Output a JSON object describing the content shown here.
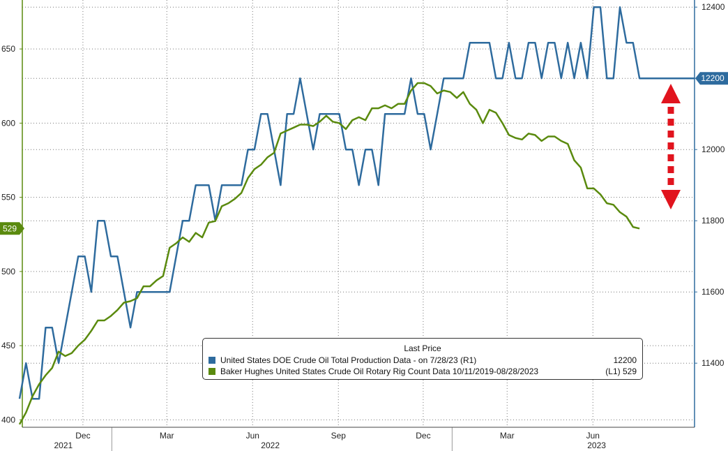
{
  "colors": {
    "production": "#2e6b9e",
    "rigcount": "#5a8a0e",
    "arrow": "#e1141e",
    "grid": "#777777"
  },
  "legend": {
    "title": "Last Price",
    "rows": [
      {
        "label": "United States DOE Crude Oil Total Production Data -   on 7/28/23  (R1)",
        "value": "12200"
      },
      {
        "label": "Baker Hughes United States Crude Oil Rotary Rig Count Data 10/11/2019-08/28/2023",
        "value": "(L1) 529"
      }
    ]
  },
  "chart_data": {
    "type": "line",
    "x_tick_labels": [
      "Dec",
      "Mar",
      "Jun",
      "Sep",
      "Dec",
      "Mar",
      "Jun"
    ],
    "year_labels": [
      "2021",
      "2022",
      "2023"
    ],
    "x_range": [
      "2021-09-27",
      "2023-09-18"
    ],
    "left_axis": {
      "ylim": [
        395,
        683
      ],
      "ticks": [
        400,
        450,
        500,
        550,
        600,
        650
      ],
      "last_value_label": "529"
    },
    "right_axis": {
      "ylim": [
        11220,
        12420
      ],
      "ticks": [
        11400,
        11600,
        11800,
        12000,
        12200,
        12400
      ],
      "last_value_label": "12200"
    },
    "series": [
      {
        "name": "United States DOE Crude Oil Total Production Data",
        "axis": "right",
        "points": [
          [
            "2021-09-24",
            11300
          ],
          [
            "2021-10-01",
            11400
          ],
          [
            "2021-10-08",
            11300
          ],
          [
            "2021-10-15",
            11300
          ],
          [
            "2021-10-22",
            11500
          ],
          [
            "2021-10-29",
            11500
          ],
          [
            "2021-11-05",
            11400
          ],
          [
            "2021-11-12",
            11500
          ],
          [
            "2021-11-19",
            11600
          ],
          [
            "2021-11-26",
            11700
          ],
          [
            "2021-12-03",
            11700
          ],
          [
            "2021-12-10",
            11600
          ],
          [
            "2021-12-17",
            11800
          ],
          [
            "2021-12-24",
            11800
          ],
          [
            "2021-12-31",
            11700
          ],
          [
            "2022-01-07",
            11700
          ],
          [
            "2022-01-14",
            11600
          ],
          [
            "2022-01-21",
            11500
          ],
          [
            "2022-01-28",
            11600
          ],
          [
            "2022-02-04",
            11600
          ],
          [
            "2022-02-11",
            11600
          ],
          [
            "2022-02-18",
            11600
          ],
          [
            "2022-02-25",
            11600
          ],
          [
            "2022-03-04",
            11600
          ],
          [
            "2022-03-11",
            11700
          ],
          [
            "2022-03-18",
            11800
          ],
          [
            "2022-03-25",
            11800
          ],
          [
            "2022-04-01",
            11900
          ],
          [
            "2022-04-08",
            11900
          ],
          [
            "2022-04-15",
            11900
          ],
          [
            "2022-04-22",
            11800
          ],
          [
            "2022-04-29",
            11900
          ],
          [
            "2022-05-06",
            11900
          ],
          [
            "2022-05-13",
            11900
          ],
          [
            "2022-05-20",
            11900
          ],
          [
            "2022-05-27",
            12000
          ],
          [
            "2022-06-03",
            12000
          ],
          [
            "2022-06-10",
            12100
          ],
          [
            "2022-06-17",
            12100
          ],
          [
            "2022-06-24",
            12000
          ],
          [
            "2022-07-01",
            11900
          ],
          [
            "2022-07-08",
            12100
          ],
          [
            "2022-07-15",
            12100
          ],
          [
            "2022-07-22",
            12200
          ],
          [
            "2022-07-29",
            12100
          ],
          [
            "2022-08-05",
            12000
          ],
          [
            "2022-08-12",
            12100
          ],
          [
            "2022-08-19",
            12100
          ],
          [
            "2022-08-26",
            12100
          ],
          [
            "2022-09-02",
            12100
          ],
          [
            "2022-09-09",
            12000
          ],
          [
            "2022-09-16",
            12000
          ],
          [
            "2022-09-23",
            11900
          ],
          [
            "2022-09-30",
            12000
          ],
          [
            "2022-10-07",
            12000
          ],
          [
            "2022-10-14",
            11900
          ],
          [
            "2022-10-21",
            12100
          ],
          [
            "2022-10-28",
            12100
          ],
          [
            "2022-11-04",
            12100
          ],
          [
            "2022-11-11",
            12100
          ],
          [
            "2022-11-18",
            12200
          ],
          [
            "2022-11-25",
            12100
          ],
          [
            "2022-12-02",
            12100
          ],
          [
            "2022-12-09",
            12000
          ],
          [
            "2022-12-16",
            12100
          ],
          [
            "2022-12-23",
            12200
          ],
          [
            "2022-12-30",
            12200
          ],
          [
            "2023-01-06",
            12200
          ],
          [
            "2023-01-13",
            12200
          ],
          [
            "2023-01-20",
            12300
          ],
          [
            "2023-01-27",
            12300
          ],
          [
            "2023-02-03",
            12300
          ],
          [
            "2023-02-10",
            12300
          ],
          [
            "2023-02-17",
            12200
          ],
          [
            "2023-02-24",
            12200
          ],
          [
            "2023-03-03",
            12300
          ],
          [
            "2023-03-10",
            12200
          ],
          [
            "2023-03-17",
            12200
          ],
          [
            "2023-03-24",
            12300
          ],
          [
            "2023-03-31",
            12300
          ],
          [
            "2023-04-07",
            12200
          ],
          [
            "2023-04-14",
            12300
          ],
          [
            "2023-04-21",
            12300
          ],
          [
            "2023-04-28",
            12200
          ],
          [
            "2023-05-05",
            12300
          ],
          [
            "2023-05-12",
            12200
          ],
          [
            "2023-05-19",
            12300
          ],
          [
            "2023-05-26",
            12200
          ],
          [
            "2023-06-02",
            12400
          ],
          [
            "2023-06-09",
            12400
          ],
          [
            "2023-06-16",
            12200
          ],
          [
            "2023-06-23",
            12200
          ],
          [
            "2023-06-30",
            12400
          ],
          [
            "2023-07-07",
            12300
          ],
          [
            "2023-07-14",
            12300
          ],
          [
            "2023-07-21",
            12200
          ],
          [
            "2023-07-28",
            12200
          ],
          [
            "2023-09-18",
            12200
          ]
        ]
      },
      {
        "name": "Baker Hughes United States Crude Oil Rotary Rig Count Data",
        "axis": "left",
        "points": [
          [
            "2021-09-24",
            397
          ],
          [
            "2021-10-01",
            405
          ],
          [
            "2021-10-08",
            416
          ],
          [
            "2021-10-15",
            424
          ],
          [
            "2021-10-22",
            430
          ],
          [
            "2021-10-29",
            435
          ],
          [
            "2021-11-05",
            446
          ],
          [
            "2021-11-12",
            443
          ],
          [
            "2021-11-19",
            445
          ],
          [
            "2021-11-26",
            450
          ],
          [
            "2021-12-03",
            454
          ],
          [
            "2021-12-10",
            460
          ],
          [
            "2021-12-17",
            467
          ],
          [
            "2021-12-24",
            467
          ],
          [
            "2021-12-31",
            470
          ],
          [
            "2022-01-07",
            474
          ],
          [
            "2022-01-14",
            479
          ],
          [
            "2022-01-21",
            480
          ],
          [
            "2022-01-28",
            482
          ],
          [
            "2022-02-04",
            490
          ],
          [
            "2022-02-11",
            490
          ],
          [
            "2022-02-18",
            494
          ],
          [
            "2022-02-25",
            497
          ],
          [
            "2022-03-04",
            516
          ],
          [
            "2022-03-11",
            519
          ],
          [
            "2022-03-18",
            523
          ],
          [
            "2022-03-25",
            520
          ],
          [
            "2022-04-01",
            526
          ],
          [
            "2022-04-08",
            523
          ],
          [
            "2022-04-15",
            533
          ],
          [
            "2022-04-22",
            534
          ],
          [
            "2022-04-29",
            544
          ],
          [
            "2022-05-06",
            546
          ],
          [
            "2022-05-13",
            549
          ],
          [
            "2022-05-20",
            553
          ],
          [
            "2022-05-27",
            563
          ],
          [
            "2022-06-03",
            569
          ],
          [
            "2022-06-10",
            572
          ],
          [
            "2022-06-17",
            577
          ],
          [
            "2022-06-24",
            580
          ],
          [
            "2022-07-01",
            593
          ],
          [
            "2022-07-08",
            595
          ],
          [
            "2022-07-15",
            597
          ],
          [
            "2022-07-22",
            599
          ],
          [
            "2022-07-29",
            599
          ],
          [
            "2022-08-05",
            598
          ],
          [
            "2022-08-12",
            601
          ],
          [
            "2022-08-19",
            605
          ],
          [
            "2022-08-26",
            601
          ],
          [
            "2022-09-02",
            600
          ],
          [
            "2022-09-09",
            596
          ],
          [
            "2022-09-16",
            602
          ],
          [
            "2022-09-23",
            604
          ],
          [
            "2022-09-30",
            602
          ],
          [
            "2022-10-07",
            610
          ],
          [
            "2022-10-14",
            610
          ],
          [
            "2022-10-21",
            612
          ],
          [
            "2022-10-28",
            610
          ],
          [
            "2022-11-04",
            613
          ],
          [
            "2022-11-11",
            613
          ],
          [
            "2022-11-18",
            622
          ],
          [
            "2022-11-25",
            627
          ],
          [
            "2022-12-02",
            627
          ],
          [
            "2022-12-09",
            625
          ],
          [
            "2022-12-16",
            620
          ],
          [
            "2022-12-23",
            622
          ],
          [
            "2022-12-30",
            621
          ],
          [
            "2023-01-06",
            617
          ],
          [
            "2023-01-13",
            621
          ],
          [
            "2023-01-20",
            613
          ],
          [
            "2023-01-27",
            609
          ],
          [
            "2023-02-03",
            600
          ],
          [
            "2023-02-10",
            609
          ],
          [
            "2023-02-17",
            607
          ],
          [
            "2023-02-24",
            600
          ],
          [
            "2023-03-03",
            592
          ],
          [
            "2023-03-10",
            590
          ],
          [
            "2023-03-17",
            589
          ],
          [
            "2023-03-24",
            593
          ],
          [
            "2023-03-31",
            592
          ],
          [
            "2023-04-07",
            588
          ],
          [
            "2023-04-14",
            591
          ],
          [
            "2023-04-21",
            591
          ],
          [
            "2023-04-28",
            588
          ],
          [
            "2023-05-05",
            586
          ],
          [
            "2023-05-12",
            575
          ],
          [
            "2023-05-19",
            570
          ],
          [
            "2023-05-26",
            556
          ],
          [
            "2023-06-02",
            556
          ],
          [
            "2023-06-09",
            552
          ],
          [
            "2023-06-16",
            546
          ],
          [
            "2023-06-23",
            545
          ],
          [
            "2023-06-30",
            540
          ],
          [
            "2023-07-07",
            537
          ],
          [
            "2023-07-14",
            530
          ],
          [
            "2023-07-21",
            529
          ]
        ]
      }
    ]
  }
}
